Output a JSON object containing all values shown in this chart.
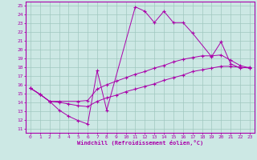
{
  "xlabel": "Windchill (Refroidissement éolien,°C)",
  "xlim": [
    -0.5,
    23.5
  ],
  "ylim": [
    10.5,
    25.5
  ],
  "xticks": [
    0,
    1,
    2,
    3,
    4,
    5,
    6,
    7,
    8,
    9,
    10,
    11,
    12,
    13,
    14,
    15,
    16,
    17,
    18,
    19,
    20,
    21,
    22,
    23
  ],
  "yticks": [
    11,
    12,
    13,
    14,
    15,
    16,
    17,
    18,
    19,
    20,
    21,
    22,
    23,
    24,
    25
  ],
  "bg_color": "#cce8e4",
  "line_color": "#aa00aa",
  "grid_color": "#a0c8c0",
  "upper_x": [
    0,
    1,
    2,
    3,
    4,
    5,
    6,
    7,
    8,
    11,
    12,
    13,
    14,
    15,
    16,
    17,
    19,
    20,
    21,
    22,
    23
  ],
  "upper_y": [
    15.6,
    14.9,
    14.1,
    13.1,
    12.4,
    11.9,
    11.5,
    17.6,
    13.1,
    24.9,
    24.4,
    23.1,
    24.4,
    23.1,
    23.1,
    21.9,
    19.2,
    20.9,
    18.4,
    17.9,
    18.0
  ],
  "mid_x": [
    0,
    1,
    2,
    3,
    5,
    6,
    7,
    8,
    9,
    10,
    11,
    12,
    13,
    14,
    15,
    16,
    17,
    18,
    19,
    20,
    21,
    22,
    23
  ],
  "mid_y": [
    15.6,
    14.9,
    14.1,
    14.1,
    14.1,
    14.2,
    15.5,
    16.0,
    16.4,
    16.8,
    17.2,
    17.5,
    17.9,
    18.2,
    18.6,
    18.9,
    19.1,
    19.3,
    19.3,
    19.4,
    18.8,
    18.2,
    17.9
  ],
  "low_x": [
    0,
    1,
    2,
    3,
    4,
    5,
    6,
    7,
    8,
    9,
    10,
    11,
    12,
    13,
    14,
    15,
    16,
    17,
    18,
    19,
    20,
    21,
    22,
    23
  ],
  "low_y": [
    15.6,
    14.9,
    14.1,
    14.0,
    13.8,
    13.6,
    13.5,
    14.1,
    14.5,
    14.8,
    15.2,
    15.5,
    15.8,
    16.1,
    16.5,
    16.8,
    17.1,
    17.5,
    17.7,
    17.9,
    18.1,
    18.1,
    18.0,
    17.9
  ]
}
